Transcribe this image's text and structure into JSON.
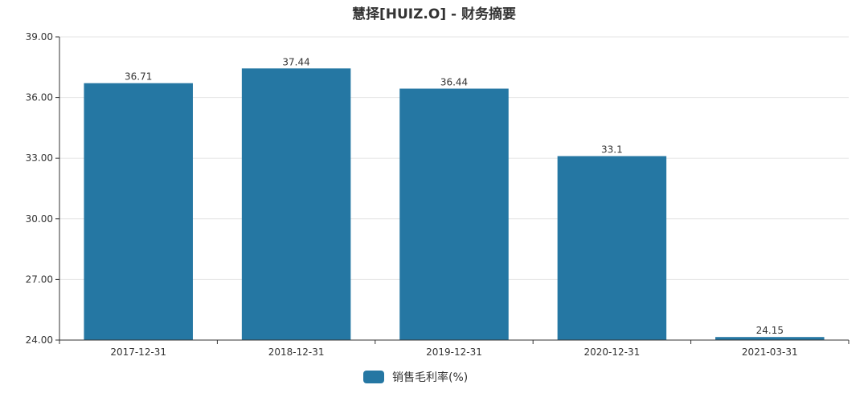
{
  "chart_data": {
    "type": "bar",
    "title": "慧择[HUIZ.O] - 财务摘要",
    "categories": [
      "2017-12-31",
      "2018-12-31",
      "2019-12-31",
      "2020-12-31",
      "2021-03-31"
    ],
    "series": [
      {
        "name": "销售毛利率(%)",
        "values": [
          36.71,
          37.44,
          36.44,
          33.1,
          24.15
        ],
        "labels": [
          "36.71",
          "37.44",
          "36.44",
          "33.1",
          "24.15"
        ],
        "color": "#2577a3"
      }
    ],
    "ylim": [
      24,
      39
    ],
    "yticks": [
      "24.00",
      "27.00",
      "30.00",
      "33.00",
      "36.00",
      "39.00"
    ],
    "grid": true,
    "legend_position": "bottom-center"
  }
}
